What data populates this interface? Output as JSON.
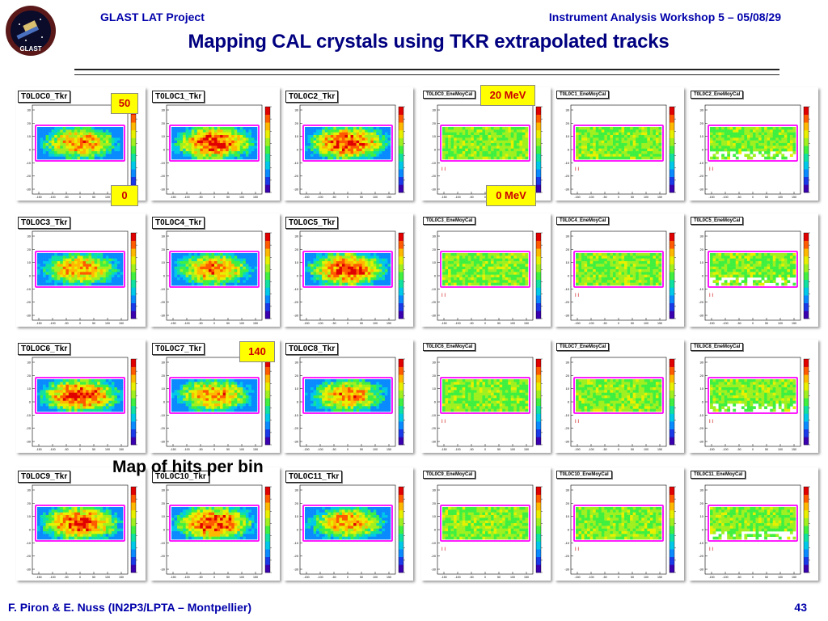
{
  "header": {
    "left": "GLAST LAT Project",
    "right": "Instrument Analysis Workshop 5 – 05/08/29",
    "logo_text": "GLAST"
  },
  "title": "Mapping CAL crystals using TKR extrapolated tracks",
  "caption": "Map of hits per bin",
  "footer": {
    "left": "F. Piron & E. Nuss  (IN2P3/LPTA – Montpellier)",
    "page": "43"
  },
  "annotations": {
    "hits_max": "50",
    "hits_min": "0",
    "hits_max_lower": "140",
    "energy_max": "20 MeV",
    "energy_min": "0 MeV"
  },
  "colors": {
    "header_text": "#0000aa",
    "title_text": "#000080",
    "annotation_box": "#ffff00",
    "annotation_text": "#cc0000",
    "crystal_outline": "#ff00ff"
  },
  "tkr_panels": [
    {
      "label": "T0L0C0_Tkr"
    },
    {
      "label": "T0L0C1_Tkr"
    },
    {
      "label": "T0L0C2_Tkr"
    },
    {
      "label": "T0L0C3_Tkr"
    },
    {
      "label": "T0L0C4_Tkr"
    },
    {
      "label": "T0L0C5_Tkr"
    },
    {
      "label": "T0L0C6_Tkr"
    },
    {
      "label": "T0L0C7_Tkr"
    },
    {
      "label": "T0L0C8_Tkr"
    },
    {
      "label": "T0L0C9_Tkr"
    },
    {
      "label": "T0L0C10_Tkr"
    },
    {
      "label": "T0L0C11_Tkr"
    }
  ],
  "cal_panels": [
    {
      "label": "T0L0C0_EneMoyCal"
    },
    {
      "label": "T0L0C1_EneMoyCal"
    },
    {
      "label": "T0L0C2_EneMoyCal"
    },
    {
      "label": "T0L0C3_EneMoyCal"
    },
    {
      "label": "T0L0C4_EneMoyCal"
    },
    {
      "label": "T0L0C5_EneMoyCal"
    },
    {
      "label": "T0L0C6_EneMoyCal"
    },
    {
      "label": "T0L0C7_EneMoyCal"
    },
    {
      "label": "T0L0C8_EneMoyCal"
    },
    {
      "label": "T0L0C9_EneMoyCal"
    },
    {
      "label": "T0L0C10_EneMoyCal"
    },
    {
      "label": "T0L0C11_EneMoyCal"
    }
  ],
  "axis": {
    "x_ticks": [
      "-150",
      "-100",
      "-50",
      "0",
      "50",
      "100",
      "150"
    ],
    "y_ticks": [
      "30",
      "20",
      "10",
      "0",
      "-10",
      "-20",
      "-30"
    ]
  }
}
